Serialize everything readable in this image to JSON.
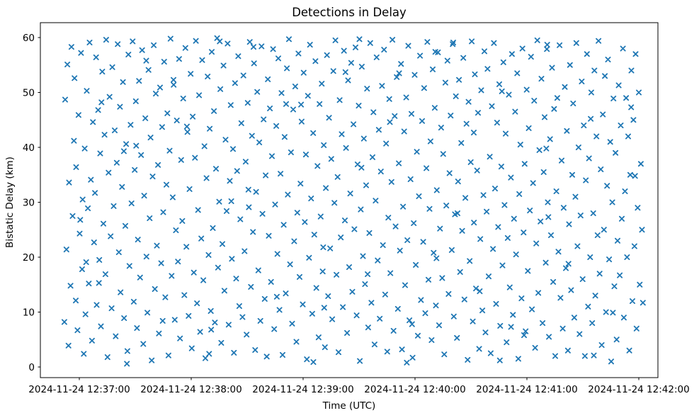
{
  "figure": {
    "background": "#ffffff"
  },
  "chart_data": {
    "type": "scatter",
    "title": "Detections in Delay",
    "xlabel": "Time (UTC)",
    "ylabel": "Bistatic Delay (km)",
    "grid": false,
    "legend": "none",
    "marker": {
      "symbol": "x",
      "color": "#1f77b4"
    },
    "x_tick_labels": [
      "2024-11-24 12:37:00",
      "2024-11-24 12:38:00",
      "2024-11-24 12:39:00",
      "2024-11-24 12:40:00",
      "2024-11-24 12:41:00",
      "2024-11-24 12:42:00"
    ],
    "x_tick_seconds": [
      60,
      120,
      180,
      240,
      300,
      360
    ],
    "x_unit": "seconds after 2024-11-24 12:36:00 UTC",
    "xlim_seconds": [
      39.1,
      370.3
    ],
    "y_ticks": [
      0,
      10,
      20,
      30,
      40,
      50,
      60
    ],
    "ylim": [
      -1.9,
      62.7
    ],
    "n_points": 600,
    "points_ty": [
      52,
      8.2,
      52.4,
      48.7,
      53.1,
      21.4,
      53.6,
      55.1,
      54.2,
      3.9,
      54.5,
      33.6,
      55.3,
      14.8,
      55.8,
      58.3,
      56.4,
      27.5,
      57.1,
      41.2,
      57.4,
      52.6,
      58.1,
      12.1,
      58.3,
      36.4,
      59,
      6.7,
      59.6,
      45.9,
      60.2,
      24.3,
      60.9,
      57.2,
      61.5,
      17.8,
      61.8,
      30.5,
      62.4,
      2.4,
      62.9,
      39.8,
      63.3,
      9.6,
      64,
      50.3,
      64.6,
      28.9,
      65.1,
      15.2,
      65.5,
      59.1,
      66.2,
      34.1,
      66.8,
      4.8,
      67.3,
      44.6,
      67.9,
      22.7,
      68.4,
      31.7,
      69,
      56.4,
      69.3,
      11.3,
      70.1,
      46.8,
      70.7,
      19.5,
      71.2,
      38.9,
      71.6,
      7.4,
      72.3,
      53.8,
      72.9,
      26.1,
      73.5,
      42.3,
      74,
      16.9,
      74.4,
      59.6,
      75.1,
      1.8,
      75.7,
      35.4,
      76.2,
      49.2,
      76.8,
      23.8,
      77.3,
      10.7,
      77.7,
      54.6,
      78.4,
      29.3,
      79,
      43.1,
      79.5,
      5.6,
      80.1,
      37.2,
      80.6,
      58.8,
      81.2,
      20.9,
      81.8,
      47.4,
      82.1,
      13.6,
      82.9,
      32.8,
      83.4,
      51.9,
      84,
      8.9,
      84.7,
      25.7,
      85.1,
      40.6,
      85.8,
      2.9,
      86.3,
      56.9,
      86.9,
      18.4,
      87.5,
      44.1,
      88,
      29.8,
      88.6,
      59.3,
      89.2,
      11.9,
      89.7,
      35.9,
      90.3,
      48.4,
      90.9,
      7.1,
      91.4,
      23.2,
      92,
      52.1,
      92.6,
      16.3,
      93.1,
      38.6,
      93.7,
      57.7,
      94.3,
      4.2,
      94.8,
      31.2,
      95.4,
      45.3,
      96,
      20.1,
      96.5,
      9.9,
      97.1,
      54.1,
      97.7,
      27.1,
      98.2,
      41.8,
      98.8,
      1.2,
      99.3,
      34.7,
      99.9,
      58.6,
      100.5,
      14.2,
      101,
      49.8,
      101.6,
      22.1,
      102.2,
      36.8,
      102.7,
      6.1,
      103.3,
      50.9,
      103.9,
      18.9,
      104.4,
      43.7,
      105,
      28.2,
      105.5,
      55.6,
      106.1,
      12.7,
      106.7,
      33.2,
      107.2,
      46.2,
      107.8,
      2.1,
      108.4,
      39.4,
      108.9,
      59.8,
      109.5,
      16.6,
      110.1,
      30.9,
      110.6,
      51.4,
      111.2,
      8.6,
      111.8,
      24.9,
      112.3,
      44.9,
      112.9,
      19.2,
      113.5,
      56.1,
      114,
      5.2,
      114.6,
      37.7,
      115.2,
      26.6,
      115.7,
      48.9,
      116.3,
      13.1,
      116.9,
      58.1,
      117.4,
      21.9,
      118,
      42.8,
      118.6,
      9.3,
      119.1,
      32.4,
      119.7,
      53.4,
      120.3,
      3.4,
      120.8,
      45.6,
      121.4,
      17.2,
      122,
      38.1,
      122.5,
      59.4,
      123.1,
      11.6,
      123.7,
      28.6,
      124.2,
      49.5,
      124.8,
      6.4,
      125.4,
      23.4,
      125.9,
      55.9,
      126.5,
      15.8,
      127.1,
      40.2,
      127.6,
      1.6,
      128.2,
      34.4,
      128.8,
      52.9,
      129.3,
      20.4,
      129.9,
      43.4,
      130.5,
      10.2,
      131,
      57.4,
      131.6,
      25.3,
      132.2,
      46.6,
      132.7,
      8.1,
      133.3,
      36.1,
      133.9,
      59.9,
      134.4,
      18.1,
      135,
      30.1,
      135.6,
      50.6,
      136.1,
      4.4,
      136.7,
      22.4,
      137.3,
      54.9,
      137.8,
      13.9,
      138.4,
      41.4,
      139,
      28.4,
      139.5,
      58.9,
      140.1,
      7.7,
      140.7,
      33.9,
      141.2,
      47.7,
      141.8,
      19.7,
      142.4,
      39.7,
      142.9,
      2.6,
      143.5,
      51.7,
      144.1,
      16.1,
      144.6,
      35.7,
      145.2,
      56.6,
      145.8,
      11.1,
      146.3,
      26.9,
      146.9,
      44.4,
      147.5,
      9.1,
      148,
      53.1,
      148.6,
      21.1,
      149.2,
      37.4,
      149.7,
      5.9,
      150.3,
      48.1,
      150.9,
      29.1,
      151.4,
      59.2,
      152,
      14.6,
      152.6,
      42.1,
      153.1,
      24.6,
      153.7,
      55.3,
      154.3,
      3.1,
      154.8,
      31.9,
      155.4,
      50.1,
      156,
      17.6,
      156.5,
      40.9,
      157.1,
      8.4,
      157.7,
      58.4,
      158.2,
      27.9,
      158.8,
      45.1,
      159.4,
      12.4,
      159.9,
      34.9,
      160.5,
      1.9,
      161.1,
      52.4,
      161.6,
      23.9,
      162.2,
      47.1,
      162.8,
      15.5,
      163.3,
      38.4,
      163.9,
      57.9,
      164.5,
      6.9,
      165,
      29.6,
      165.6,
      43.9,
      166.2,
      20.6,
      166.7,
      56.2,
      167.3,
      10.4,
      167.9,
      35.2,
      168.4,
      49.9,
      169,
      2.2,
      169.6,
      25.9,
      170.1,
      41.9,
      170.7,
      13.4,
      171.3,
      54.4,
      171.8,
      31.4,
      172.4,
      59.7,
      173,
      18.7,
      173.5,
      39.1,
      174.1,
      7.9,
      174.7,
      46.9,
      175.2,
      22.9,
      175.8,
      51.1,
      176.4,
      4.6,
      176.9,
      28.1,
      177.5,
      57.1,
      178.1,
      16.4,
      178.6,
      33.4,
      179.2,
      44.7,
      179.8,
      11.4,
      180.3,
      53.6,
      180.9,
      26.4,
      181.5,
      38.7,
      182,
      1.4,
      182.6,
      49.4,
      183.2,
      19.9,
      183.7,
      58.7,
      184.3,
      30.7,
      184.9,
      9.7,
      185.4,
      42.6,
      186,
      24.1,
      186.6,
      55.7,
      187.1,
      14.4,
      187.7,
      36.6,
      188.3,
      5.4,
      188.8,
      47.9,
      189.4,
      27.4,
      190,
      51.6,
      190.5,
      17.4,
      191.1,
      40.4,
      191.7,
      3.6,
      192.2,
      32.6,
      192.8,
      56.8,
      193.4,
      12.9,
      193.9,
      45.4,
      194.5,
      21.6,
      195.1,
      37.9,
      195.6,
      8.7,
      196.2,
      53.9,
      196.8,
      29.9,
      197.3,
      59.5,
      197.9,
      16.8,
      198.5,
      34.6,
      199,
      2.7,
      199.6,
      48.6,
      200.2,
      23.6,
      200.7,
      42.4,
      201.3,
      10.9,
      201.9,
      57.6,
      202.4,
      26.7,
      203,
      39.9,
      203.6,
      6.2,
      204.1,
      52.2,
      204.7,
      18.2,
      205.3,
      31.6,
      205.8,
      55.4,
      206.4,
      13.7,
      207,
      44.2,
      207.5,
      25.1,
      208.1,
      58.2,
      208.7,
      9.4,
      209.2,
      36.9,
      209.8,
      47.6,
      210.4,
      1.1,
      210.9,
      28.7,
      211.5,
      54.7,
      212.1,
      20.2,
      212.6,
      41.6,
      213.2,
      15.1,
      213.8,
      33.1,
      214.3,
      50.7,
      214.9,
      7.2,
      215.5,
      24.4,
      216,
      59.0,
      216.6,
      11.7,
      217.2,
      38.2,
      217.7,
      46.4,
      218.3,
      4.1,
      218.9,
      30.3,
      219.4,
      56.4,
      220,
      19.4,
      220.6,
      43.2,
      221.1,
      8.8,
      221.7,
      35.6,
      222.3,
      51.2,
      222.8,
      22.2,
      223.4,
      57.8,
      224,
      13.2,
      224.5,
      40.7,
      225.1,
      2.8,
      225.7,
      27.2,
      226.2,
      48.8,
      226.8,
      17.1,
      227.4,
      33.7,
      227.9,
      59.6,
      228.5,
      6.6,
      229.1,
      45.7,
      229.6,
      25.6,
      230.2,
      52.8,
      230.8,
      10.6,
      231.3,
      37.1,
      231.9,
      21.2,
      232.5,
      55.2,
      233,
      3.2,
      233.6,
      29.2,
      234.2,
      42.9,
      234.7,
      14.9,
      235.3,
      49.1,
      235.9,
      23.1,
      236.4,
      58.5,
      237,
      8.5,
      237.6,
      34.2,
      238.1,
      46.1,
      238.7,
      1.7,
      239.3,
      26.2,
      239.8,
      53.2,
      240.4,
      18.6,
      241,
      39.2,
      241.5,
      5.7,
      242.1,
      31.1,
      242.7,
      56.7,
      243.2,
      12.2,
      243.8,
      44.8,
      244.4,
      22.8,
      244.9,
      50.8,
      245.5,
      9.8,
      246.1,
      36.2,
      246.6,
      59.2,
      247.2,
      15.9,
      247.8,
      28.8,
      248.3,
      41.1,
      248.9,
      4.9,
      249.5,
      54.2,
      250,
      20.8,
      250.6,
      47.2,
      251.2,
      11.2,
      251.7,
      32.2,
      252.3,
      57.3,
      252.9,
      7.6,
      253.4,
      25.2,
      254,
      43.6,
      254.6,
      16.2,
      255.1,
      38.8,
      255.7,
      2.3,
      256.3,
      51.8,
      256.8,
      29.4,
      257.4,
      55.8,
      258,
      13.3,
      258.5,
      35.3,
      259.1,
      45.8,
      259.7,
      21.3,
      260.2,
      58.8,
      260.8,
      9.2,
      261.4,
      27.8,
      261.9,
      49.3,
      262.5,
      5.3,
      263.1,
      33.8,
      263.6,
      52.3,
      264.2,
      17.3,
      264.8,
      40.8,
      265.3,
      24.8,
      265.9,
      56.3,
      266.5,
      12.3,
      267,
      30.8,
      267.6,
      44.3,
      268.2,
      1.3,
      268.7,
      48.3,
      269.3,
      19.3,
      269.9,
      37.3,
      270.4,
      59.3,
      271,
      8.3,
      271.6,
      26.3,
      272.1,
      53.3,
      272.7,
      14.3,
      273.3,
      35.8,
      273.8,
      46.3,
      274.4,
      3.3,
      275,
      23.3,
      275.5,
      50.4,
      276.1,
      10.3,
      276.7,
      31.3,
      277.2,
      57.5,
      277.8,
      6.3,
      278.4,
      28.3,
      278.9,
      54.3,
      279.5,
      16.5,
      280.1,
      38.3,
      280.6,
      2.5,
      281.2,
      47.5,
      281.8,
      21.5,
      282.3,
      59.0,
      282.9,
      32.5,
      283.5,
      11.5,
      284,
      44.5,
      284.6,
      25.5,
      285.2,
      51.5,
      285.7,
      7.5,
      286.3,
      36.5,
      286.9,
      18.5,
      287.4,
      55.5,
      288,
      29.5,
      288.6,
      42.5,
      289.1,
      4.5,
      289.7,
      23.5,
      290.3,
      49.6,
      290.8,
      14.5,
      291.4,
      34.5,
      292,
      57.0,
      292.5,
      9.5,
      293.1,
      27.0,
      293.7,
      46.5,
      294.2,
      20.5,
      294.8,
      53.5,
      295.4,
      1.5,
      295.9,
      31.5,
      296.5,
      40.5,
      297.1,
      12.5,
      297.6,
      58.0,
      298.2,
      24.5,
      298.8,
      37.0,
      299.3,
      6.5,
      299.9,
      50.5,
      300.5,
      17.5,
      301,
      43.5,
      301.6,
      28.5,
      302.2,
      56.5,
      302.7,
      10.5,
      303.3,
      33.5,
      303.9,
      48.5,
      304.4,
      3.5,
      305,
      22.5,
      305.6,
      59.5,
      306.1,
      13.5,
      306.7,
      39.5,
      307.3,
      26.5,
      307.8,
      52.5,
      308.4,
      8.0,
      309,
      35.5,
      309.5,
      45.5,
      310.1,
      19.0,
      310.7,
      57.9,
      311.2,
      30.0,
      311.8,
      5.5,
      312.4,
      41.5,
      312.9,
      24.0,
      313.5,
      54.5,
      314.1,
      15.5,
      314.6,
      47.0,
      315.2,
      2.0,
      315.8,
      32.0,
      316.3,
      49.0,
      316.9,
      21.0,
      317.5,
      58.6,
      318,
      12.6,
      318.6,
      37.6,
      319.2,
      7.0,
      319.7,
      29.0,
      320.3,
      51.0,
      320.9,
      18.0,
      321.4,
      43.0,
      322,
      3.0,
      322.6,
      26.0,
      323.1,
      55.0,
      323.7,
      14.0,
      324.3,
      35.0,
      324.8,
      48.0,
      325.4,
      9.0,
      326,
      31.0,
      326.5,
      59.0,
      327.1,
      22.0,
      327.7,
      40.0,
      328.2,
      6.0,
      328.8,
      27.6,
      329.4,
      52.0,
      329.9,
      16.0,
      330.5,
      44.0,
      331.1,
      2.0,
      331.6,
      34.0,
      332.2,
      57.0,
      332.8,
      11.0,
      333.3,
      38.0,
      333.9,
      20.0,
      334.5,
      50.0,
      335,
      8.0,
      335.6,
      28.0,
      336.2,
      54.0,
      336.7,
      13.0,
      337.3,
      42.0,
      337.9,
      24.0,
      338.4,
      59.4,
      339,
      17.0,
      339.6,
      36.0,
      340.1,
      4.0,
      340.7,
      46.0,
      341.3,
      25.0,
      341.8,
      53.0,
      342.4,
      10.0,
      343,
      33.0,
      343.5,
      56.0,
      344.1,
      19.6,
      344.7,
      41.0,
      345.2,
      1.0,
      345.8,
      30.0,
      346.4,
      48.9,
      346.9,
      14.7,
      347.5,
      39.0,
      348.1,
      5.0,
      348.6,
      23.0,
      349.2,
      51.3,
      349.8,
      16.7,
      350.3,
      44.0,
      350.9,
      27.0,
      351.5,
      58.0,
      352,
      9.0,
      352.6,
      32.0,
      353.2,
      49.0,
      353.7,
      20.0,
      354.3,
      42.0,
      354.9,
      3.0,
      355.4,
      35.0,
      356,
      54.0,
      356.6,
      12.0,
      357.1,
      45.0,
      357.7,
      22.0,
      358.3,
      57.0,
      358.8,
      7.0,
      359.4,
      29.0,
      360,
      50.0,
      360.5,
      15.0,
      361.1,
      37.0,
      361.7,
      25.0,
      362.2,
      11.7,
      63.7,
      19.1,
      71.9,
      48.2,
      83.9,
      39.3,
      95.9,
      55.8,
      104.7,
      8.4,
      117.7,
      43.8,
      129.6,
      2.4,
      141.5,
      30.2,
      153.4,
      58.3,
      165.9,
      12.8,
      178.9,
      47.8,
      190.8,
      21.8,
      202.7,
      53.7,
      214.6,
      16.9,
      226.5,
      44.6,
      238.4,
      7.8,
      250.9,
      57.4,
      262.8,
      28.0,
      274.7,
      13.8,
      286.6,
      50.2,
      298.5,
      5.8,
      310.4,
      39.8,
      322.3,
      18.8,
      334.2,
      45.2,
      346.1,
      9.9,
      358,
      34.8,
      60.5,
      26.8,
      85.5,
      0.6,
      135.3,
      59.3,
      185.5,
      0.9,
      210.2,
      59.7,
      235.6,
      0.8,
      260.5,
      59.1,
      285.5,
      1.2,
      310.9,
      58.7,
      335.9,
      2.1,
      355.9,
      47.3,
      70.5,
      15.3,
      90.5,
      40.3,
      110.5,
      52.3,
      130.7,
      6.8,
      150.7,
      32.3,
      170.9,
      47.9,
      191.3,
      10.8,
      211.3,
      36.3,
      231.5,
      53.5,
      251.5,
      19.8,
      271.5,
      42.7,
      291.5,
      7.3,
      311.5,
      27.3
    ]
  }
}
